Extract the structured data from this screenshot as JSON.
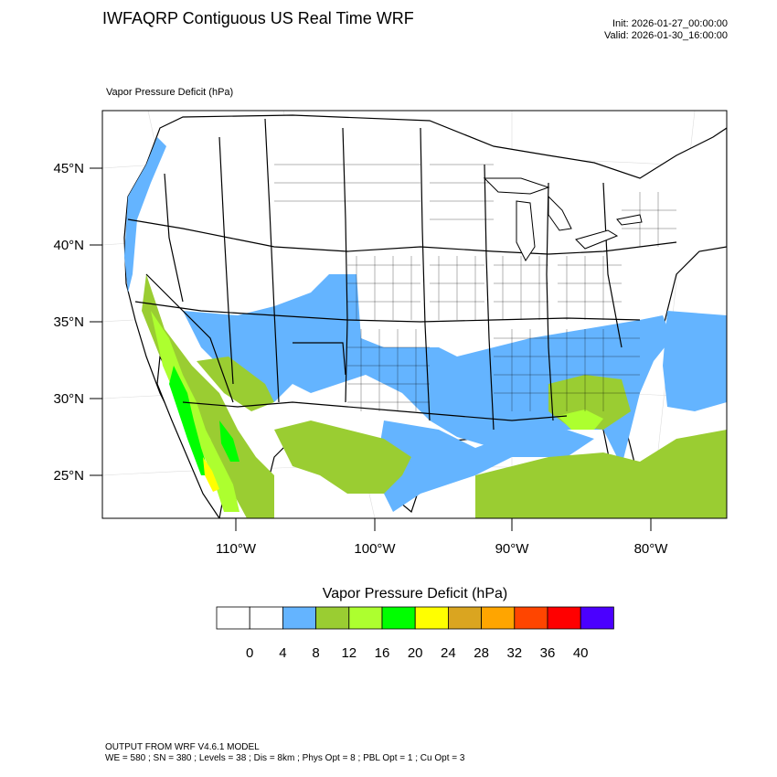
{
  "header": {
    "title": "IWFAQRP Contiguous US Real Time WRF",
    "init": "Init: 2026-01-27_00:00:00",
    "valid": "Valid: 2026-01-30_16:00:00"
  },
  "field_label": "Vapor Pressure Deficit   (hPa)",
  "map": {
    "latitude_labels": [
      "45°N",
      "40°N",
      "35°N",
      "30°N",
      "25°N"
    ],
    "longitude_labels": [
      "110°W",
      "100°W",
      "90°W",
      "80°W"
    ],
    "colors": {
      "ocean": "#ffffff",
      "boundary": "#000000",
      "graticule": "#cccccc"
    }
  },
  "colorbar": {
    "title": "Vapor Pressure Deficit  (hPa)",
    "tick_labels": [
      "0",
      "4",
      "8",
      "12",
      "16",
      "20",
      "24",
      "28",
      "32",
      "36",
      "40"
    ],
    "colors": [
      "#ffffff",
      "#ffffff",
      "#64b4ff",
      "#9acd32",
      "#adff2f",
      "#00ff00",
      "#ffff00",
      "#daa520",
      "#ffa500",
      "#ff4500",
      "#ff0000",
      "#4b00ff"
    ]
  },
  "footer": {
    "line1": "OUTPUT FROM WRF V4.6.1 MODEL",
    "line2": "WE = 580 ; SN = 380 ; Levels = 38 ; Dis = 8km ; Phys Opt = 8 ; PBL Opt = 1 ; Cu Opt = 3"
  }
}
